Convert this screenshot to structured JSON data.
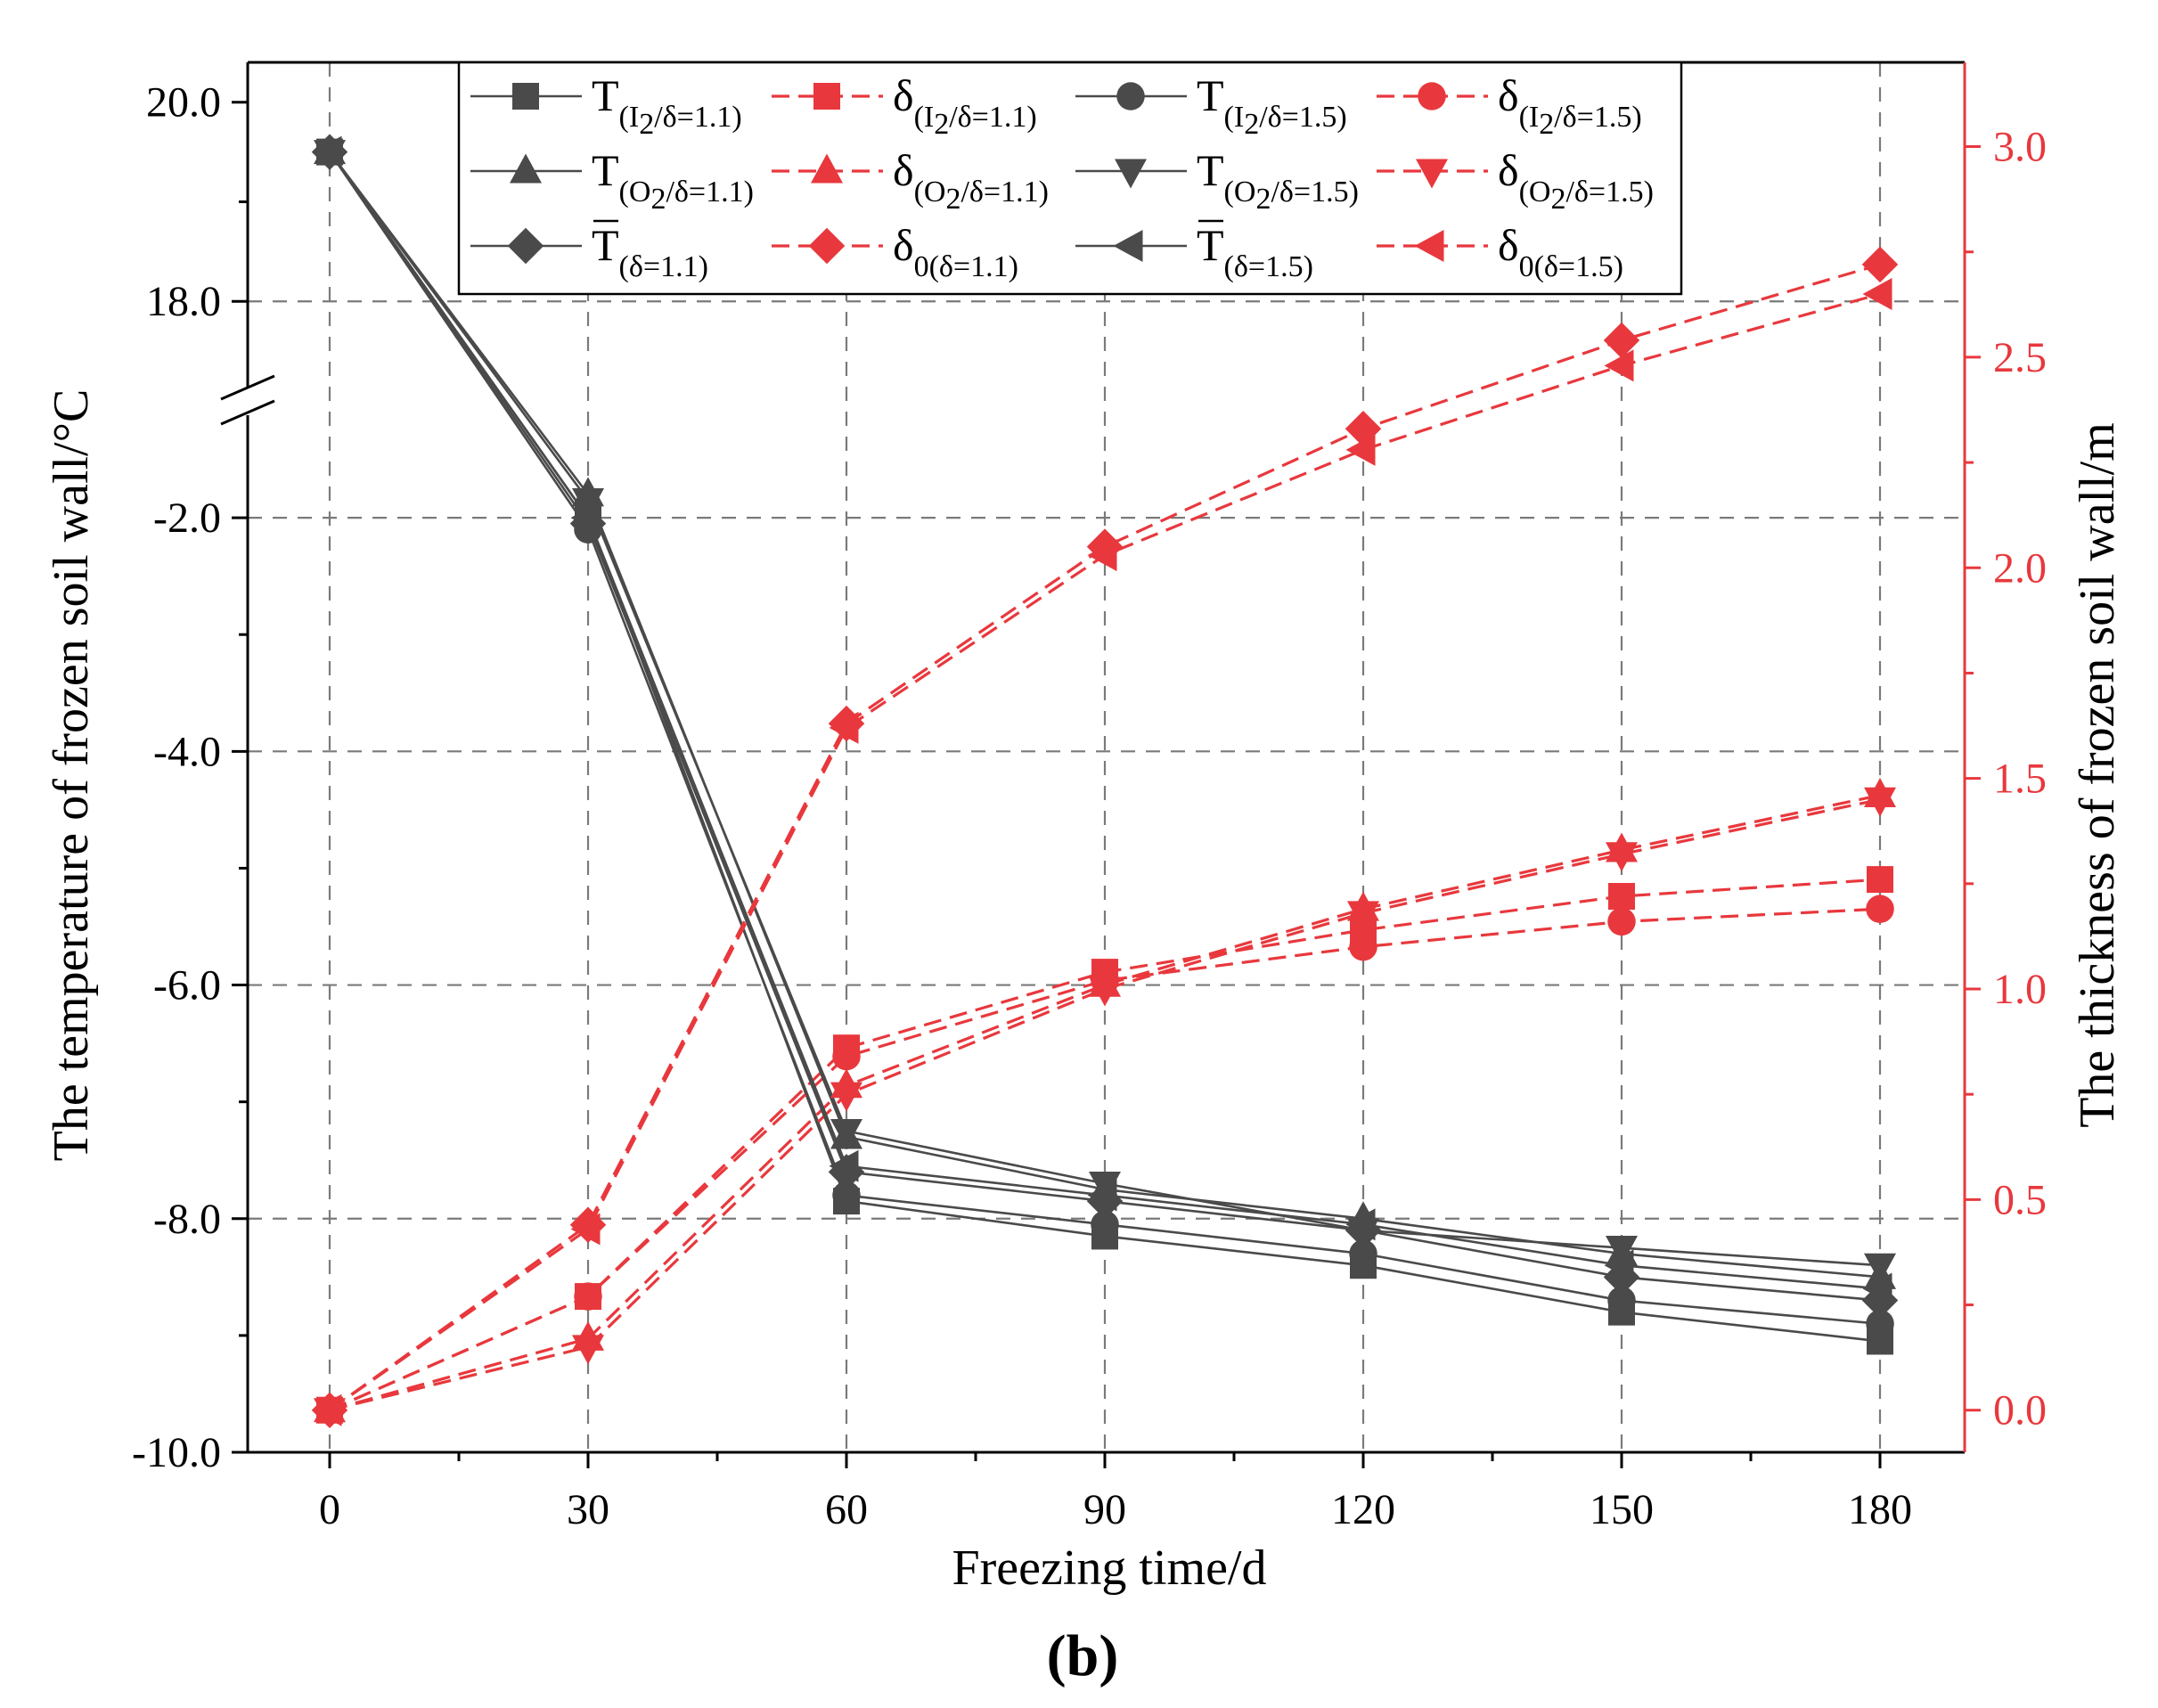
{
  "chart_data": {
    "type": "line",
    "caption": "(b)",
    "xlabel": "Freezing time/d",
    "ylabel_left": "The temperature of frozen soil wall/°C",
    "ylabel_right": "The thickness of frozen soil wall/m",
    "x": [
      0,
      30,
      60,
      90,
      120,
      150,
      180
    ],
    "x_tick_labels": [
      "0",
      "30",
      "60",
      "90",
      "120",
      "150",
      "180"
    ],
    "y_left_break": [
      -1.0,
      17.0
    ],
    "y_left_ticks_lower": [
      "-10.0",
      "-8.0",
      "-6.0",
      "-4.0",
      "-2.0"
    ],
    "y_left_ticks_upper": [
      "18.0",
      "20.0"
    ],
    "y_left_ticks_lower_values": [
      -10,
      -8,
      -6,
      -4,
      -2
    ],
    "y_left_ticks_upper_values": [
      18,
      20
    ],
    "y_right_ticks": [
      "0.0",
      "0.5",
      "1.0",
      "1.5",
      "2.0",
      "2.5",
      "3.0"
    ],
    "y_right_ticks_values": [
      0,
      0.5,
      1.0,
      1.5,
      2.0,
      2.5,
      3.0
    ],
    "ylim_right": [
      -0.1,
      3.2
    ],
    "grid": true,
    "legend_position": "top",
    "colors": {
      "temperature": "#4a4a4a",
      "thickness": "#e8383d"
    },
    "series": [
      {
        "main": "T",
        "sub": "(I",
        "sub2": "2",
        "sub3": "/δ=1.1)",
        "bar": false,
        "axis": "left",
        "marker": "square",
        "values": [
          19.5,
          -2.0,
          -7.85,
          -8.15,
          -8.4,
          -8.8,
          -9.05
        ]
      },
      {
        "main": "δ",
        "sub": "(I",
        "sub2": "2",
        "sub3": "/δ=1.1)",
        "bar": false,
        "axis": "right",
        "marker": "square",
        "values": [
          0.0,
          0.27,
          0.86,
          1.04,
          1.14,
          1.22,
          1.26
        ]
      },
      {
        "main": "T",
        "sub": "(I",
        "sub2": "2",
        "sub3": "/δ=1.5)",
        "bar": false,
        "axis": "left",
        "marker": "circle",
        "values": [
          19.5,
          -2.1,
          -7.8,
          -8.05,
          -8.3,
          -8.7,
          -8.9
        ]
      },
      {
        "main": "δ",
        "sub": "(I",
        "sub2": "2",
        "sub3": "/δ=1.5)",
        "bar": false,
        "axis": "right",
        "marker": "circle",
        "values": [
          0.0,
          0.27,
          0.84,
          1.02,
          1.1,
          1.16,
          1.19
        ]
      },
      {
        "main": "T",
        "sub": "(O",
        "sub2": "2",
        "sub3": "/δ=1.1)",
        "bar": false,
        "axis": "left",
        "marker": "triangle-up",
        "values": [
          19.5,
          -1.8,
          -7.3,
          -7.75,
          -8.0,
          -8.3,
          -8.5
        ]
      },
      {
        "main": "δ",
        "sub": "(O",
        "sub2": "2",
        "sub3": "/δ=1.1)",
        "bar": false,
        "axis": "right",
        "marker": "triangle-up",
        "values": [
          0.0,
          0.17,
          0.77,
          1.01,
          1.19,
          1.33,
          1.46
        ]
      },
      {
        "main": "T",
        "sub": "(O",
        "sub2": "2",
        "sub3": "/δ=1.5)",
        "bar": false,
        "axis": "left",
        "marker": "triangle-down",
        "values": [
          19.5,
          -1.85,
          -7.25,
          -7.7,
          -8.1,
          -8.25,
          -8.4
        ]
      },
      {
        "main": "δ",
        "sub": "(O",
        "sub2": "2",
        "sub3": "/δ=1.5)",
        "bar": false,
        "axis": "right",
        "marker": "triangle-down",
        "values": [
          0.0,
          0.15,
          0.75,
          1.0,
          1.18,
          1.32,
          1.45
        ]
      },
      {
        "main": "T",
        "sub": "(δ=1.1)",
        "sub2": "",
        "sub3": "",
        "bar": true,
        "axis": "left",
        "marker": "diamond",
        "values": [
          19.5,
          -2.05,
          -7.6,
          -7.85,
          -8.1,
          -8.5,
          -8.7
        ]
      },
      {
        "main": "δ",
        "sub": "0(δ=1.1)",
        "sub2": "",
        "sub3": "",
        "bar": false,
        "axis": "right",
        "marker": "diamond",
        "values": [
          0.0,
          0.44,
          1.63,
          2.05,
          2.33,
          2.54,
          2.72
        ]
      },
      {
        "main": "T",
        "sub": "(δ=1.5)",
        "sub2": "",
        "sub3": "",
        "bar": true,
        "axis": "left",
        "marker": "triangle-left",
        "values": [
          19.5,
          -2.0,
          -7.55,
          -7.8,
          -8.05,
          -8.4,
          -8.6
        ]
      },
      {
        "main": "δ",
        "sub": "0(δ=1.5)",
        "sub2": "",
        "sub3": "",
        "bar": false,
        "axis": "right",
        "marker": "triangle-left",
        "values": [
          0.0,
          0.43,
          1.62,
          2.03,
          2.28,
          2.48,
          2.65
        ]
      }
    ]
  }
}
